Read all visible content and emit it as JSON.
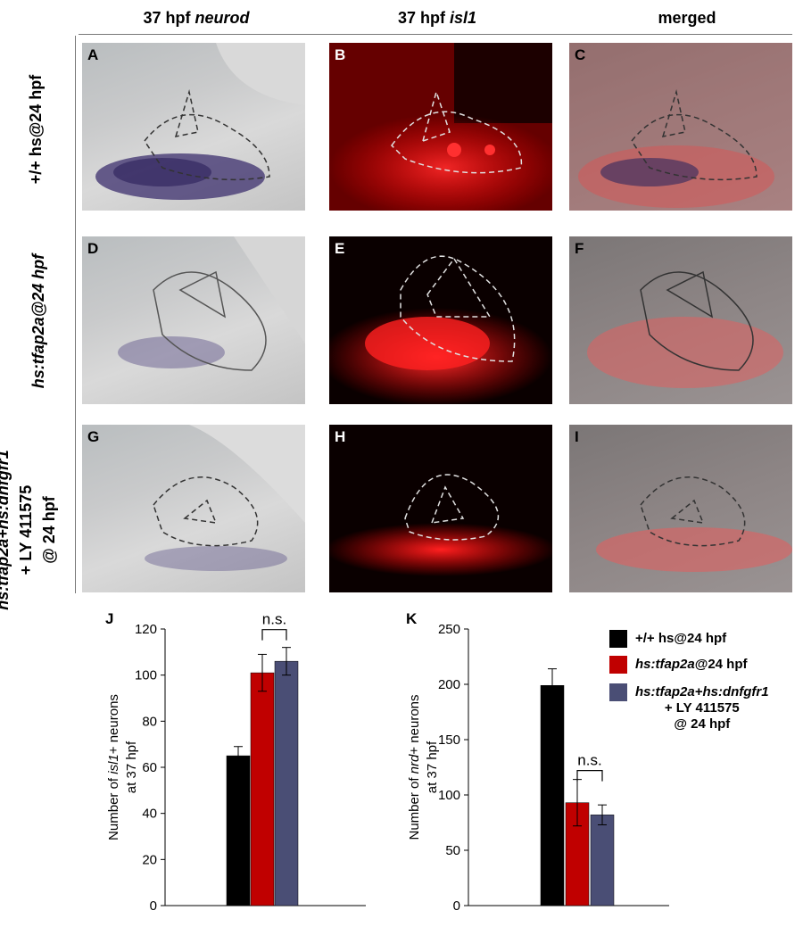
{
  "columns": [
    {
      "prefix": "37 hpf",
      "italic": "neurod"
    },
    {
      "prefix": "37 hpf",
      "italic": "isl1"
    },
    {
      "prefix": "merged",
      "italic": ""
    }
  ],
  "rows": [
    {
      "label_lines": [
        "+/+ hs@24 hpf"
      ]
    },
    {
      "label_lines": [
        "hs:tfap2a@24 hpf"
      ]
    },
    {
      "label_lines": [
        "hs:tfap2a+hs:dnfgfr1",
        "+ LY 411575",
        "@ 24 hpf"
      ]
    }
  ],
  "panel_letters": [
    "A",
    "B",
    "C",
    "D",
    "E",
    "F",
    "G",
    "H",
    "I"
  ],
  "colors": {
    "black_bar": "#000000",
    "red_bar": "#c00000",
    "blue_bar": "#4a4e75",
    "fluorescence": "#ff1a1a",
    "outline_dark": "#333333",
    "outline_light": "#e0e0e0"
  },
  "legend": [
    {
      "color": "#000000",
      "text": "+/+ hs@24 hpf"
    },
    {
      "color": "#c00000",
      "italic": "hs:tfap2a",
      "text": "@24 hpf"
    },
    {
      "color": "#4a4e75",
      "italic": "hs:tfap2a+hs:dnfgfr1",
      "line2": "+ LY 411575",
      "line3": "@ 24 hpf"
    }
  ],
  "chart_data": [
    {
      "type": "bar",
      "panel": "J",
      "categories": [
        "+/+ hs@24 hpf",
        "hs:tfap2a@24 hpf",
        "hs:tfap2a+hs:dnfgfr1 + LY 411575 @ 24 hpf"
      ],
      "values": [
        65,
        101,
        106
      ],
      "errors": [
        4,
        8,
        6
      ],
      "ylabel_pre": "Number of ",
      "ylabel_italic": "isl1",
      "ylabel_post": "+ neurons",
      "ylabel_line2": "at 37 hpf",
      "ylim": [
        0,
        120
      ],
      "yticks": [
        "0",
        "20",
        "40",
        "60",
        "80",
        "100",
        "120"
      ],
      "annotation": "n.s.",
      "annotation_between": [
        1,
        2
      ]
    },
    {
      "type": "bar",
      "panel": "K",
      "categories": [
        "+/+ hs@24 hpf",
        "hs:tfap2a@24 hpf",
        "hs:tfap2a+hs:dnfgfr1 + LY 411575 @ 24 hpf"
      ],
      "values": [
        199,
        93,
        82
      ],
      "errors": [
        15,
        21,
        9
      ],
      "ylabel_pre": "Number of ",
      "ylabel_italic": "nrd",
      "ylabel_post": "+ neurons",
      "ylabel_line2": "at 37 hpf",
      "ylim": [
        0,
        250
      ],
      "yticks": [
        "0",
        "50",
        "100",
        "150",
        "200",
        "250"
      ],
      "annotation": "n.s.",
      "annotation_between": [
        1,
        2
      ]
    }
  ]
}
